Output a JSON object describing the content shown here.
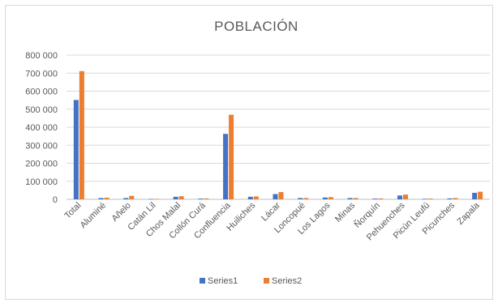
{
  "chart_data": {
    "type": "bar",
    "title": "POBLACIÓN",
    "categories": [
      "Total",
      "Aluminé",
      "Añelo",
      "Catán Lil",
      "Chos Malal",
      "Collón Curá",
      "Confluencia",
      "Huiliches",
      "Lácar",
      "Loncopué",
      "Los Lagos",
      "Minas",
      "Ñorquín",
      "Pehuenches",
      "Picún Leufú",
      "Picunches",
      "Zapala"
    ],
    "series": [
      {
        "name": "Series1",
        "color": "#4472c4",
        "values": [
          551000,
          7000,
          7000,
          2000,
          14000,
          4000,
          363000,
          14000,
          29000,
          7000,
          10000,
          7000,
          4000,
          21000,
          3000,
          5000,
          36000
        ]
      },
      {
        "name": "Series2",
        "color": "#ed7d31",
        "values": [
          711000,
          9000,
          19000,
          2500,
          17000,
          4500,
          469000,
          16000,
          40000,
          7000,
          12000,
          7000,
          4500,
          26000,
          4000,
          7000,
          42000
        ]
      }
    ],
    "ylim": [
      0,
      800000
    ],
    "yticks": [
      "0",
      "100 000",
      "200 000",
      "300 000",
      "400 000",
      "500 000",
      "600 000",
      "700 000",
      "800 000"
    ],
    "grid": true,
    "legend_position": "bottom"
  }
}
